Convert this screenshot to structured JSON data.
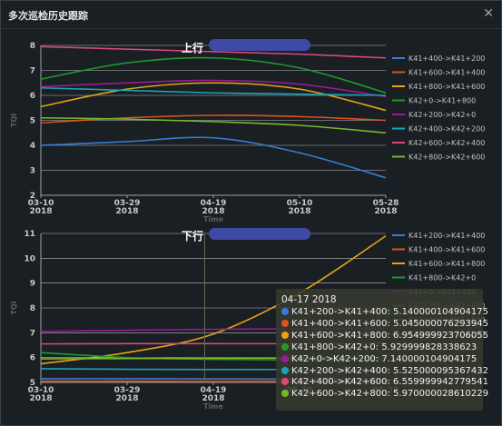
{
  "window": {
    "title": "多次巡检历史跟踪",
    "close_icon": "close-icon"
  },
  "legend_colors": [
    "#3a7bd5",
    "#d9541f",
    "#e8a317",
    "#1e9a2c",
    "#9b1b9b",
    "#1aa3b8",
    "#d94a7a",
    "#76b82a"
  ],
  "chart_data": [
    {
      "type": "line",
      "title": "上行",
      "xlabel": "Time",
      "ylabel": "TQI",
      "ylim": [
        2,
        8
      ],
      "yticks": [
        2,
        3,
        4,
        5,
        6,
        7,
        8
      ],
      "xticks": [
        [
          "03-10",
          "2018"
        ],
        [
          "03-29",
          "2018"
        ],
        [
          "04-19",
          "2018"
        ],
        [
          "05-10",
          "2018"
        ],
        [
          "05-28",
          "2018"
        ]
      ],
      "x": [
        "03-10",
        "03-29",
        "04-19",
        "05-10",
        "05-28"
      ],
      "series": [
        {
          "name": "K41+400->K41+200",
          "values": [
            4.0,
            4.15,
            4.3,
            3.7,
            2.7
          ]
        },
        {
          "name": "K41+600->K41+400",
          "values": [
            4.9,
            5.1,
            5.2,
            5.15,
            5.0
          ]
        },
        {
          "name": "K41+800->K41+600",
          "values": [
            5.55,
            6.25,
            6.5,
            6.25,
            5.4
          ]
        },
        {
          "name": "K42+0->K41+800",
          "values": [
            6.65,
            7.3,
            7.5,
            7.1,
            6.1
          ]
        },
        {
          "name": "K42+200->K42+0",
          "values": [
            6.35,
            6.5,
            6.6,
            6.45,
            5.95
          ]
        },
        {
          "name": "K42+400->K42+200",
          "values": [
            6.3,
            6.2,
            6.1,
            6.05,
            6.0
          ]
        },
        {
          "name": "K42+600->K42+400",
          "values": [
            7.95,
            7.85,
            7.75,
            7.65,
            7.5
          ]
        },
        {
          "name": "K42+800->K42+600",
          "values": [
            5.1,
            5.05,
            4.95,
            4.8,
            4.5
          ]
        }
      ]
    },
    {
      "type": "line",
      "title": "下行",
      "xlabel": "Time",
      "ylabel": "TQI",
      "ylim": [
        5,
        11
      ],
      "yticks": [
        5,
        6,
        7,
        8,
        9,
        10,
        11
      ],
      "xticks": [
        [
          "03-10",
          "2018"
        ],
        [
          "03-29",
          "2018"
        ],
        [
          "04-19",
          "2018"
        ],
        [
          "05-10",
          ""
        ],
        [
          "05-28",
          ""
        ]
      ],
      "x": [
        "03-10",
        "03-29",
        "04-19",
        "05-10",
        "05-28"
      ],
      "series": [
        {
          "name": "K41+200->K41+400",
          "values": [
            5.15,
            5.15,
            5.14,
            5.13,
            5.12
          ]
        },
        {
          "name": "K41+400->K41+600",
          "values": [
            5.05,
            5.05,
            5.04,
            5.04,
            5.03
          ]
        },
        {
          "name": "K41+600->K41+800",
          "values": [
            5.75,
            6.2,
            6.95,
            8.6,
            10.9
          ]
        },
        {
          "name": "K41+800->K42+0",
          "values": [
            6.2,
            6.0,
            5.93,
            5.9,
            5.88
          ]
        },
        {
          "name": "K42+0->K42+200",
          "values": [
            7.05,
            7.1,
            7.14,
            7.16,
            7.18
          ]
        },
        {
          "name": "K42+200->K42+400",
          "values": [
            5.55,
            5.53,
            5.52,
            5.52,
            5.5
          ]
        },
        {
          "name": "K42+400->K42+600",
          "values": [
            6.55,
            6.56,
            6.56,
            6.56,
            6.57
          ]
        },
        {
          "name": "K42+600->K42+800",
          "values": [
            5.95,
            5.96,
            5.97,
            5.98,
            6.0
          ]
        }
      ]
    }
  ],
  "tooltip": {
    "date": "04-17 2018",
    "rows": [
      {
        "label": "K41+200->K41+400:",
        "value": "5.140000104904175"
      },
      {
        "label": "K41+400->K41+600:",
        "value": "5.045000076293945"
      },
      {
        "label": "K41+600->K41+800:",
        "value": "6.954999923706055"
      },
      {
        "label": "K41+800->K42+0:",
        "value": "5.929999828338623"
      },
      {
        "label": "K42+0->K42+200:",
        "value": "7.140000104904175"
      },
      {
        "label": "K42+200->K42+400:",
        "value": "5.525000095367432"
      },
      {
        "label": "K42+400->K42+600:",
        "value": "6.559999942779541"
      },
      {
        "label": "K42+600->K42+800:",
        "value": "5.970000028610229"
      }
    ]
  }
}
